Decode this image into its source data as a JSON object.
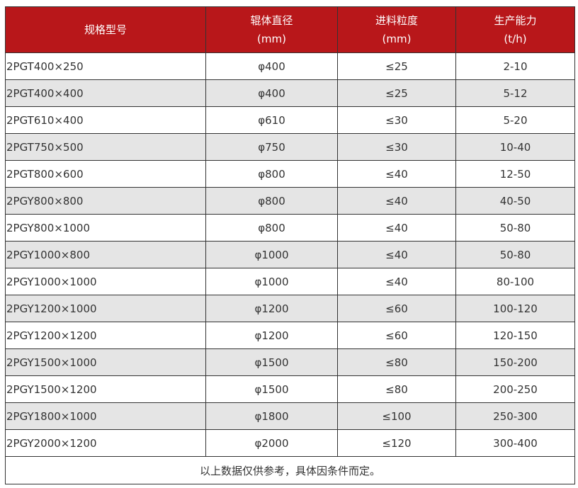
{
  "colors": {
    "header_bg": "#b8171a",
    "alt_row_bg": "#e5e5e5"
  },
  "table": {
    "headers": [
      {
        "line1": "规格型号",
        "line2": ""
      },
      {
        "line1": "辊体直径",
        "line2": "(mm)"
      },
      {
        "line1": "进料粒度",
        "line2": "(mm)"
      },
      {
        "line1": "生产能力",
        "line2": "(t/h)"
      }
    ],
    "rows": [
      [
        "2PGT400×250",
        "φ400",
        "≤25",
        "2-10"
      ],
      [
        "2PGT400×400",
        "φ400",
        "≤25",
        "5-12"
      ],
      [
        "2PGT610×400",
        "φ610",
        "≤30",
        "5-20"
      ],
      [
        "2PGT750×500",
        "φ750",
        "≤30",
        "10-40"
      ],
      [
        "2PGT800×600",
        "φ800",
        "≤40",
        "12-50"
      ],
      [
        "2PGY800×800",
        "φ800",
        "≤40",
        "40-50"
      ],
      [
        "2PGY800×1000",
        "φ800",
        "≤40",
        "50-80"
      ],
      [
        "2PGY1000×800",
        "φ1000",
        "≤40",
        "50-80"
      ],
      [
        "2PGY1000×1000",
        "φ1000",
        "≤40",
        "80-100"
      ],
      [
        "2PGY1200×1000",
        "φ1200",
        "≤60",
        "100-120"
      ],
      [
        "2PGY1200×1200",
        "φ1200",
        "≤60",
        "120-150"
      ],
      [
        "2PGY1500×1000",
        "φ1500",
        "≤80",
        "150-200"
      ],
      [
        "2PGY1500×1200",
        "φ1500",
        "≤80",
        "200-250"
      ],
      [
        "2PGY1800×1000",
        "φ1800",
        "≤100",
        "250-300"
      ],
      [
        "2PGY2000×1200",
        "φ2000",
        "≤120",
        "300-400"
      ]
    ],
    "note": "以上数据仅供参考，具体因条件而定。"
  }
}
